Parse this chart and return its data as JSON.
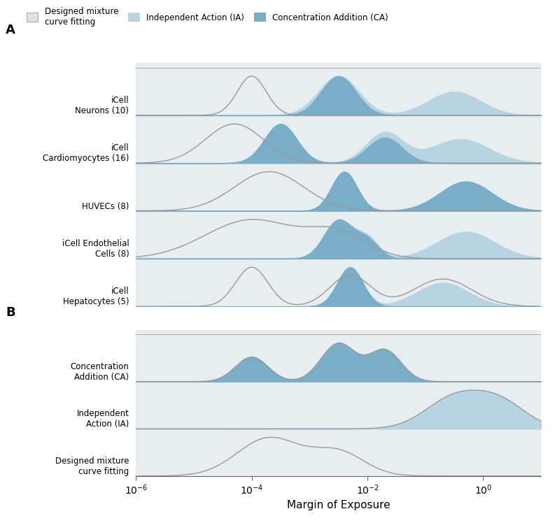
{
  "xlabel": "Margin of Exposure",
  "xlim_log": [
    -6,
    1
  ],
  "outer_bg": "#ffffff",
  "plot_bg_color": "#e8edf0",
  "color_ia": "#b8d4e3",
  "color_ca": "#7aaec8",
  "color_line": "#999999",
  "color_line_fill": "#cccccc",
  "rows_A": [
    {
      "label": "iCell\nNeurons (10)"
    },
    {
      "label": "iCell\nCardiomyocytes (16)"
    },
    {
      "label": "HUVECs (8)"
    },
    {
      "label": "iCell Endothelial\nCells (8)"
    },
    {
      "label": "iCell\nHepatocytes (5)"
    }
  ],
  "rows_B": [
    {
      "label": "Concentration\nAddition (CA)"
    },
    {
      "label": "Independent\nAction (IA)"
    },
    {
      "label": "Designed mixture\ncurve fitting"
    }
  ],
  "legend_labels": [
    "Designed mixture\ncurve fitting",
    "Independent Action (IA)",
    "Concentration Addition (CA)"
  ],
  "legend_colors_fill": [
    "#dde4e8",
    "#b8d4e3",
    "#7aaec8"
  ],
  "legend_colors_edge": [
    "#aaaaaa",
    "none",
    "none"
  ]
}
